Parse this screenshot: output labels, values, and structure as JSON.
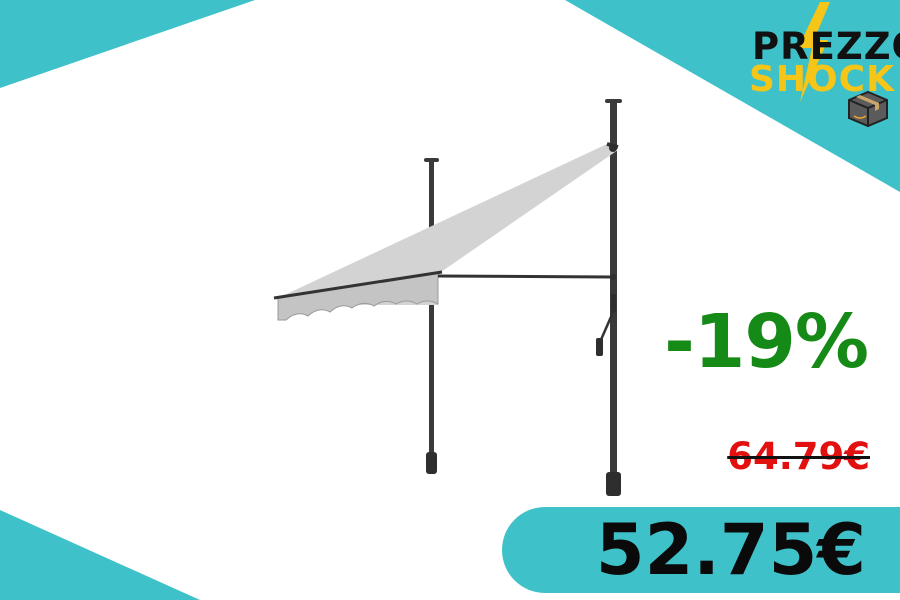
{
  "logo": {
    "line1": "PREZZO",
    "line2": "SHOCK",
    "icons": [
      "lightning-bolt-icon",
      "amazon-box-icon"
    ]
  },
  "deal": {
    "discount": "-19%",
    "old_price": "64.79€",
    "price": "52.75€"
  },
  "product": {
    "icon": "retractable-awning-illustration"
  },
  "colors": {
    "teal": "#3ec1c9",
    "discount_green": "#168a16",
    "old_price_red": "#e31010",
    "logo_yellow": "#f5c518",
    "awning_fabric": "#cfcfcf",
    "frame": "#3a3a3a"
  }
}
